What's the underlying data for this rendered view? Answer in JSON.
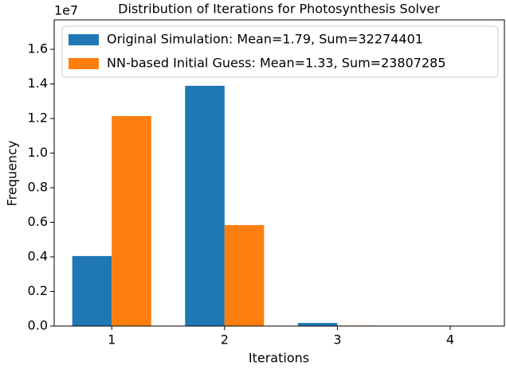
{
  "chart_data": {
    "type": "bar",
    "title": "Distribution of Iterations for Photosynthesis Solver",
    "xlabel": "Iterations",
    "ylabel": "Frequency",
    "y_offset_label": "1e7",
    "x": [
      1,
      2,
      3,
      4
    ],
    "series": [
      {
        "name": "Original Simulation: Mean=1.79, Sum=32274401",
        "color": "#1f77b4",
        "values": [
          0.405,
          1.389,
          0.018,
          0
        ]
      },
      {
        "name": "NN-based Initial Guess: Mean=1.33, Sum=23807285",
        "color": "#ff7f0e",
        "values": [
          1.214,
          0.584,
          0.003,
          0
        ]
      }
    ],
    "xlim": [
      0.49,
      4.48
    ],
    "xticks": [
      1,
      2,
      3,
      4
    ],
    "ylim": [
      0,
      1.77
    ],
    "yticks": [
      {
        "value": 0,
        "label": "0.0"
      },
      0.2,
      0.4,
      0.6,
      0.8,
      {
        "value": 1,
        "label": "1.0"
      },
      1.2,
      1.4,
      1.6
    ],
    "legend": "upper left",
    "grid": false
  }
}
